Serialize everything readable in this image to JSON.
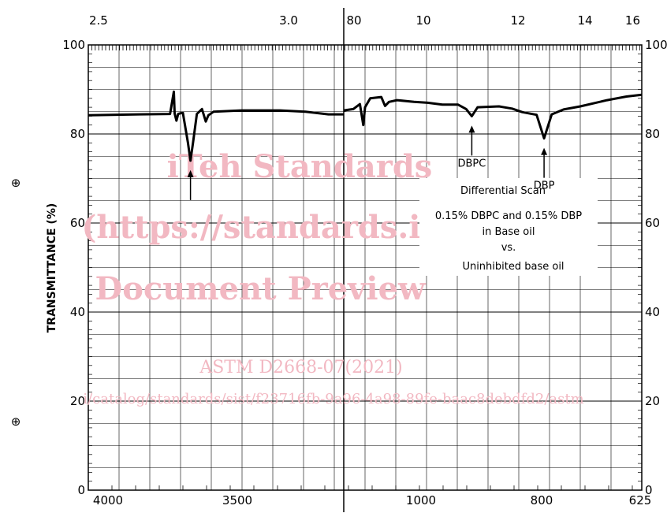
{
  "chart_data": {
    "type": "line",
    "ylabel": "TRANSMITTANCE (%)",
    "ylim": [
      0,
      100
    ],
    "yticks": [
      "0",
      "20",
      "40",
      "60",
      "80",
      "100"
    ],
    "top_axis_ticks": [
      "2.5",
      "3.0",
      "80",
      "10",
      "12",
      "14",
      "16"
    ],
    "bottom_axis_ticks": [
      "4000",
      "3500",
      "1000",
      "800",
      "625"
    ],
    "grid": true,
    "axis_break": "split panel: left 4000-3000, right 1150-625",
    "series": [
      {
        "values_left": [
          [
            4000,
            84.2
          ],
          [
            3800,
            84.4
          ],
          [
            3680,
            84.5
          ],
          [
            3665,
            89.5
          ],
          [
            3662,
            84.6
          ],
          [
            3655,
            83
          ],
          [
            3648,
            84.5
          ],
          [
            3630,
            84.8
          ],
          [
            3610,
            78
          ],
          [
            3600,
            74
          ],
          [
            3590,
            78
          ],
          [
            3575,
            84.5
          ],
          [
            3555,
            85.6
          ],
          [
            3540,
            82.8
          ],
          [
            3530,
            84.2
          ],
          [
            3510,
            85
          ],
          [
            3400,
            85.3
          ],
          [
            3250,
            85.3
          ],
          [
            3150,
            85
          ],
          [
            3060,
            84.4
          ],
          [
            3000,
            84.4
          ]
        ],
        "values_right": [
          [
            1150,
            85.3
          ],
          [
            1120,
            85.6
          ],
          [
            1100,
            86.7
          ],
          [
            1090,
            82
          ],
          [
            1085,
            86
          ],
          [
            1070,
            88
          ],
          [
            1040,
            88.3
          ],
          [
            1030,
            86.3
          ],
          [
            1020,
            87.2
          ],
          [
            1000,
            87.6
          ],
          [
            960,
            87.2
          ],
          [
            930,
            87
          ],
          [
            900,
            86.6
          ],
          [
            870,
            86.6
          ],
          [
            855,
            85.6
          ],
          [
            845,
            84
          ],
          [
            835,
            86
          ],
          [
            800,
            86.2
          ],
          [
            780,
            85.7
          ],
          [
            765,
            84.9
          ],
          [
            745,
            84.3
          ],
          [
            735,
            79
          ],
          [
            725,
            84.4
          ],
          [
            710,
            85.5
          ],
          [
            690,
            86.2
          ],
          [
            660,
            87.6
          ],
          [
            640,
            88.4
          ],
          [
            625,
            88.8
          ]
        ]
      }
    ],
    "annotations": [
      {
        "text": "DBPC",
        "target_x": 845,
        "target_y": 84
      },
      {
        "text": "DBP",
        "target_x": 735,
        "target_y": 79
      },
      {
        "text": "",
        "target_x": 3600,
        "target_y": 74
      }
    ],
    "description_lines": [
      "Differential Scan",
      "0.15% DBPC and 0.15% DBP",
      "in Base oil",
      "vs.",
      "Uninhibited base oil"
    ],
    "left_markers": [
      "⊕",
      "⊕"
    ]
  },
  "watermark": {
    "line1": "iTeh Standards",
    "line2": "(https://standards.iteh.ai)",
    "line3": "Document Preview",
    "line4": "ASTM D2668-07(2021)",
    "line5": "i/catalog/standards/sist/f23716fb-9a96-4a98-89fe-baac8debdfd2/astm"
  }
}
